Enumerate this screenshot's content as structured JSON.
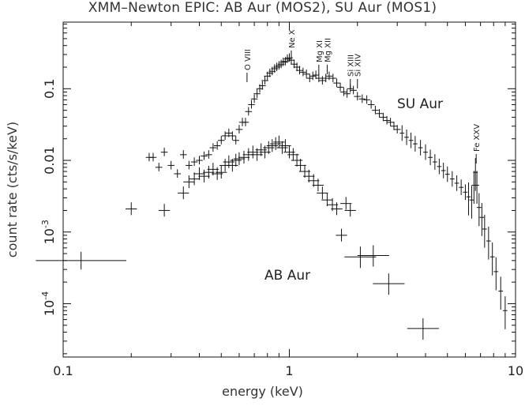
{
  "chart_data": {
    "type": "scatter",
    "title": "XMM–Newton EPIC: AB Aur (MOS2), SU Aur (MOS1)",
    "xlabel": "energy (keV)",
    "ylabel": "count rate (cts/s/keV)",
    "xscale": "log",
    "yscale": "log",
    "xlim": [
      0.1,
      10
    ],
    "ylim": [
      1.8e-05,
      0.85
    ],
    "x_ticks": [
      "0.1",
      "1",
      "10"
    ],
    "y_ticks": [
      {
        "value": 0.1,
        "label": "0.1"
      },
      {
        "value": 0.01,
        "label": "0.01"
      },
      {
        "value": 0.001,
        "label": "10^-3"
      },
      {
        "value": 0.0001,
        "label": "10^-4"
      }
    ],
    "series": [
      {
        "name": "SU Aur",
        "points": [
          [
            0.24,
            0.011
          ],
          [
            0.25,
            0.011
          ],
          [
            0.265,
            0.008
          ],
          [
            0.28,
            0.013
          ],
          [
            0.3,
            0.0085
          ],
          [
            0.32,
            0.0065
          ],
          [
            0.34,
            0.012
          ],
          [
            0.36,
            0.0085
          ],
          [
            0.38,
            0.0095
          ],
          [
            0.4,
            0.01
          ],
          [
            0.42,
            0.0115
          ],
          [
            0.44,
            0.012
          ],
          [
            0.46,
            0.015
          ],
          [
            0.48,
            0.016
          ],
          [
            0.5,
            0.019
          ],
          [
            0.52,
            0.022
          ],
          [
            0.54,
            0.024
          ],
          [
            0.56,
            0.022
          ],
          [
            0.58,
            0.019
          ],
          [
            0.6,
            0.027
          ],
          [
            0.62,
            0.034
          ],
          [
            0.64,
            0.034
          ],
          [
            0.66,
            0.048
          ],
          [
            0.68,
            0.06
          ],
          [
            0.7,
            0.072
          ],
          [
            0.72,
            0.085
          ],
          [
            0.74,
            0.1
          ],
          [
            0.76,
            0.11
          ],
          [
            0.78,
            0.13
          ],
          [
            0.8,
            0.15
          ],
          [
            0.82,
            0.165
          ],
          [
            0.84,
            0.175
          ],
          [
            0.86,
            0.19
          ],
          [
            0.88,
            0.2
          ],
          [
            0.9,
            0.21
          ],
          [
            0.92,
            0.22
          ],
          [
            0.94,
            0.235
          ],
          [
            0.96,
            0.24
          ],
          [
            0.98,
            0.26
          ],
          [
            1.0,
            0.27
          ],
          [
            1.02,
            0.25
          ],
          [
            1.05,
            0.22
          ],
          [
            1.08,
            0.2
          ],
          [
            1.11,
            0.18
          ],
          [
            1.15,
            0.17
          ],
          [
            1.19,
            0.16
          ],
          [
            1.23,
            0.14
          ],
          [
            1.27,
            0.15
          ],
          [
            1.31,
            0.155
          ],
          [
            1.35,
            0.14
          ],
          [
            1.4,
            0.13
          ],
          [
            1.45,
            0.14
          ],
          [
            1.5,
            0.15
          ],
          [
            1.56,
            0.14
          ],
          [
            1.62,
            0.12
          ],
          [
            1.68,
            0.105
          ],
          [
            1.74,
            0.09
          ],
          [
            1.8,
            0.085
          ],
          [
            1.86,
            0.1
          ],
          [
            1.92,
            0.095
          ],
          [
            2.0,
            0.078
          ],
          [
            2.1,
            0.072
          ],
          [
            2.2,
            0.07
          ],
          [
            2.3,
            0.06
          ],
          [
            2.4,
            0.05
          ],
          [
            2.5,
            0.045
          ],
          [
            2.6,
            0.04
          ],
          [
            2.7,
            0.036
          ],
          [
            2.8,
            0.034
          ],
          [
            2.9,
            0.03
          ],
          [
            3.0,
            0.027
          ],
          [
            3.15,
            0.024
          ],
          [
            3.3,
            0.021
          ],
          [
            3.45,
            0.019
          ],
          [
            3.6,
            0.017
          ],
          [
            3.8,
            0.015
          ],
          [
            4.0,
            0.013
          ],
          [
            4.2,
            0.011
          ],
          [
            4.4,
            0.0095
          ],
          [
            4.6,
            0.0082
          ],
          [
            4.8,
            0.0072
          ],
          [
            5.0,
            0.0064
          ],
          [
            5.25,
            0.0055
          ],
          [
            5.5,
            0.0048
          ],
          [
            5.75,
            0.0042
          ],
          [
            6.0,
            0.0036
          ],
          [
            6.2,
            0.0031
          ],
          [
            6.4,
            0.0028
          ],
          [
            6.55,
            0.0045
          ],
          [
            6.65,
            0.0068
          ],
          [
            6.75,
            0.0045
          ],
          [
            6.9,
            0.0022
          ],
          [
            7.1,
            0.0016
          ],
          [
            7.3,
            0.0011
          ],
          [
            7.6,
            0.00075
          ],
          [
            7.9,
            0.00045
          ],
          [
            8.2,
            0.00028
          ],
          [
            8.6,
            0.00015
          ],
          [
            9.0,
            8e-05
          ]
        ]
      },
      {
        "name": "AB Aur",
        "points": [
          [
            0.12,
            0.0004
          ],
          [
            0.2,
            0.0021
          ],
          [
            0.28,
            0.002
          ],
          [
            0.34,
            0.0035
          ],
          [
            0.36,
            0.005
          ],
          [
            0.38,
            0.0055
          ],
          [
            0.4,
            0.0065
          ],
          [
            0.42,
            0.006
          ],
          [
            0.44,
            0.0068
          ],
          [
            0.46,
            0.0075
          ],
          [
            0.48,
            0.0065
          ],
          [
            0.5,
            0.0068
          ],
          [
            0.52,
            0.0085
          ],
          [
            0.54,
            0.0095
          ],
          [
            0.56,
            0.0085
          ],
          [
            0.58,
            0.01
          ],
          [
            0.6,
            0.0105
          ],
          [
            0.63,
            0.011
          ],
          [
            0.66,
            0.012
          ],
          [
            0.69,
            0.013
          ],
          [
            0.72,
            0.012
          ],
          [
            0.75,
            0.014
          ],
          [
            0.78,
            0.013
          ],
          [
            0.81,
            0.015
          ],
          [
            0.84,
            0.016
          ],
          [
            0.87,
            0.017
          ],
          [
            0.9,
            0.018
          ],
          [
            0.93,
            0.015
          ],
          [
            0.96,
            0.016
          ],
          [
            1.0,
            0.013
          ],
          [
            1.04,
            0.012
          ],
          [
            1.08,
            0.01
          ],
          [
            1.12,
            0.0085
          ],
          [
            1.17,
            0.007
          ],
          [
            1.22,
            0.006
          ],
          [
            1.28,
            0.0052
          ],
          [
            1.34,
            0.0045
          ],
          [
            1.4,
            0.0035
          ],
          [
            1.47,
            0.0028
          ],
          [
            1.55,
            0.0024
          ],
          [
            1.62,
            0.0021
          ],
          [
            1.7,
            0.0009
          ],
          [
            1.78,
            0.0025
          ],
          [
            1.86,
            0.002
          ],
          [
            2.06,
            0.00045
          ],
          [
            2.35,
            0.00047
          ],
          [
            2.75,
            0.00019
          ],
          [
            3.9,
            4.5e-05
          ]
        ]
      }
    ],
    "annotations": [
      {
        "text": "O VIII",
        "energy": 0.65
      },
      {
        "text": "Ne X",
        "energy": 1.02
      },
      {
        "text": "Mg XI",
        "energy": 1.35
      },
      {
        "text": "Mg XII",
        "energy": 1.47
      },
      {
        "text": "Si XIII",
        "energy": 1.86
      },
      {
        "text": "Si XIV",
        "energy": 2.0
      },
      {
        "text": "Fe XXV",
        "energy": 6.7
      }
    ],
    "series_labels": {
      "su": "SU Aur",
      "ab": "AB Aur"
    }
  }
}
